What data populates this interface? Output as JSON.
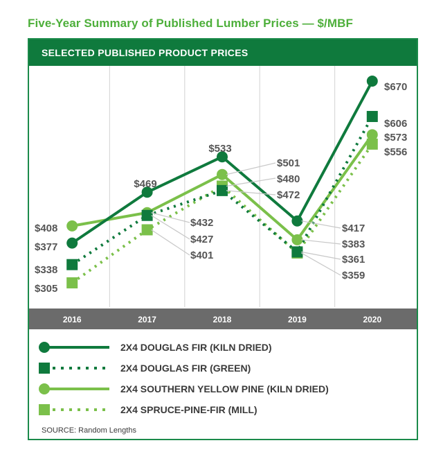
{
  "title": "Five-Year Summary of Published Lumber Prices — $/MBF",
  "band_title": "SELECTED PUBLISHED PRODUCT PRICES",
  "source": "SOURCE: Random Lengths",
  "colors": {
    "dark_green": "#0f7a3d",
    "light_green": "#7bc04a",
    "axis_band": "#6b6b6b",
    "grid": "#d9d9d9",
    "value_text": "#555555"
  },
  "chart_data": {
    "type": "line",
    "categories": [
      "2016",
      "2017",
      "2018",
      "2019",
      "2020"
    ],
    "ylim": [
      300,
      670
    ],
    "grid": "vertical",
    "legend_position": "bottom",
    "series": [
      {
        "name": "2X4 DOUGLAS FIR (KILN DRIED)",
        "values": [
          377,
          469,
          533,
          417,
          670
        ],
        "value_labels": [
          "$377",
          "$469",
          "$533",
          "$417",
          "$670"
        ],
        "color": "#0f7a3d",
        "line": "solid",
        "marker": "circle"
      },
      {
        "name": "2X4 DOUGLAS FIR (GREEN)",
        "values": [
          338,
          427,
          472,
          361,
          606
        ],
        "value_labels": [
          "$338",
          "$427",
          "$472",
          "$361",
          "$606"
        ],
        "color": "#0f7a3d",
        "line": "dotted",
        "marker": "square"
      },
      {
        "name": "2X4 SOUTHERN YELLOW PINE (KILN DRIED)",
        "values": [
          408,
          432,
          501,
          383,
          573
        ],
        "value_labels": [
          "$408",
          "$432",
          "$501",
          "$383",
          "$573"
        ],
        "color": "#7bc04a",
        "line": "solid",
        "marker": "circle"
      },
      {
        "name": "2X4 SPRUCE-PINE-FIR (MILL)",
        "values": [
          305,
          401,
          480,
          359,
          556
        ],
        "value_labels": [
          "$305",
          "$401",
          "$480",
          "$359",
          "$556"
        ],
        "color": "#7bc04a",
        "line": "dotted",
        "marker": "square"
      }
    ]
  }
}
